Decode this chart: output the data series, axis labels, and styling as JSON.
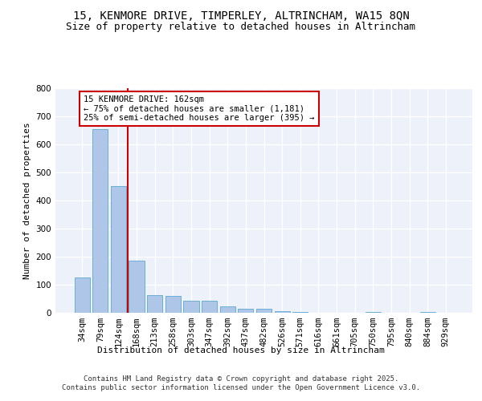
{
  "title_line1": "15, KENMORE DRIVE, TIMPERLEY, ALTRINCHAM, WA15 8QN",
  "title_line2": "Size of property relative to detached houses in Altrincham",
  "xlabel": "Distribution of detached houses by size in Altrincham",
  "ylabel": "Number of detached properties",
  "categories": [
    "34sqm",
    "79sqm",
    "124sqm",
    "168sqm",
    "213sqm",
    "258sqm",
    "303sqm",
    "347sqm",
    "392sqm",
    "437sqm",
    "482sqm",
    "526sqm",
    "571sqm",
    "616sqm",
    "661sqm",
    "705sqm",
    "750sqm",
    "795sqm",
    "840sqm",
    "884sqm",
    "929sqm"
  ],
  "values": [
    127,
    655,
    450,
    185,
    63,
    60,
    43,
    43,
    23,
    13,
    13,
    7,
    2,
    0,
    0,
    0,
    4,
    0,
    0,
    4,
    0
  ],
  "bar_color": "#aec6e8",
  "bar_edge_color": "#6baed6",
  "vline_color": "#cc0000",
  "vline_x_index": 2.5,
  "annotation_text": "15 KENMORE DRIVE: 162sqm\n← 75% of detached houses are smaller (1,181)\n25% of semi-detached houses are larger (395) →",
  "annotation_box_edgecolor": "#cc0000",
  "annotation_facecolor": "white",
  "footer_text": "Contains HM Land Registry data © Crown copyright and database right 2025.\nContains public sector information licensed under the Open Government Licence v3.0.",
  "ylim": [
    0,
    800
  ],
  "yticks": [
    0,
    100,
    200,
    300,
    400,
    500,
    600,
    700,
    800
  ],
  "background_color": "#edf2fa",
  "grid_color": "#ffffff",
  "title_fontsize": 10,
  "subtitle_fontsize": 9,
  "axis_label_fontsize": 8,
  "tick_fontsize": 7.5,
  "annotation_fontsize": 7.5,
  "footer_fontsize": 6.5
}
